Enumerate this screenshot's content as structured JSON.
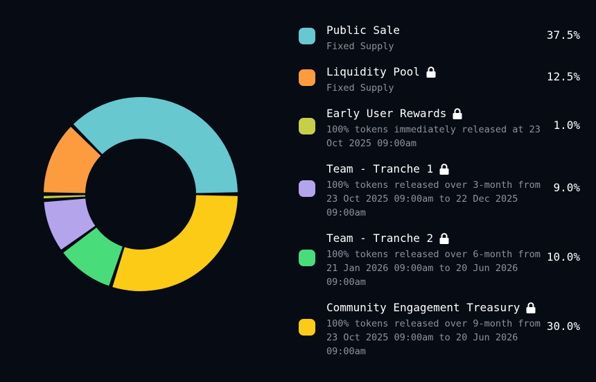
{
  "chart_data": {
    "type": "pie",
    "style": "donut",
    "categories": [
      "Public Sale",
      "Liquidity Pool",
      "Early User Rewards",
      "Team - Tranche 1",
      "Team - Tranche 2",
      "Community Engagement Treasury"
    ],
    "values": [
      37.5,
      12.5,
      1.0,
      9.0,
      10.0,
      30.0
    ],
    "value_labels": [
      "37.5%",
      "12.5%",
      "1.0%",
      "9.0%",
      "10.0%",
      "30.0%"
    ],
    "colors": [
      "#67c8d0",
      "#fd9c3f",
      "#c7cf47",
      "#b4a4ec",
      "#49dc7b",
      "#fccb15"
    ],
    "legend_position": "right"
  },
  "legend": [
    {
      "title": "Public Sale",
      "desc": "Fixed Supply",
      "value": "37.5%",
      "locked": false,
      "icon": "none"
    },
    {
      "title": "Liquidity Pool",
      "desc": "Fixed Supply",
      "value": "12.5%",
      "locked": true,
      "icon": "lock-icon"
    },
    {
      "title": "Early User Rewards",
      "desc": "100% tokens immediately released at 23 Oct 2025 09:00am",
      "value": "1.0%",
      "locked": true,
      "icon": "lock-icon"
    },
    {
      "title": "Team - Tranche 1",
      "desc": "100% tokens released over 3-month from 23 Oct 2025 09:00am to 22 Dec 2025 09:00am",
      "value": "9.0%",
      "locked": true,
      "icon": "lock-icon"
    },
    {
      "title": "Team - Tranche 2",
      "desc": "100% tokens released over 6-month from 21 Jan 2026 09:00am to 20 Jun 2026 09:00am",
      "value": "10.0%",
      "locked": true,
      "icon": "lock-icon"
    },
    {
      "title": "Community Engagement Treasury",
      "desc": "100% tokens released over 9-month from 23 Oct 2025 09:00am to 20 Jun 2026 09:00am",
      "value": "30.0%",
      "locked": true,
      "icon": "lock-icon"
    }
  ]
}
